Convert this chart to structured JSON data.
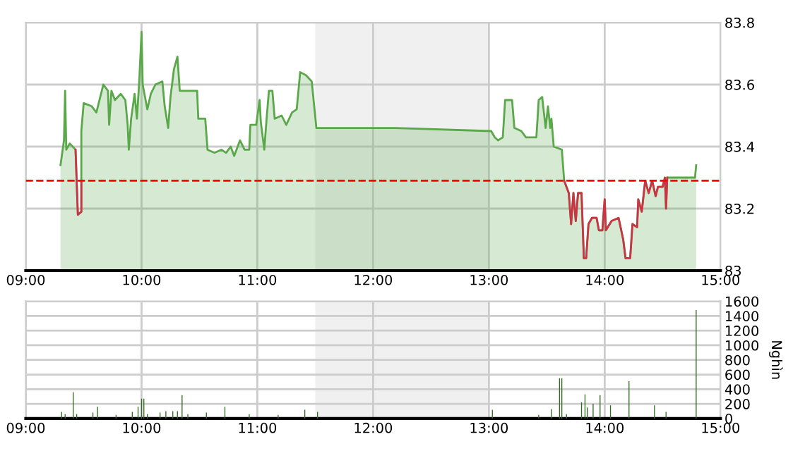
{
  "chart_data": [
    {
      "type": "area",
      "xlim": [
        9,
        15
      ],
      "xticks": [
        {
          "value": 9,
          "label": "09:00"
        },
        {
          "value": 10,
          "label": "10:00"
        },
        {
          "value": 11,
          "label": "11:00"
        },
        {
          "value": 12,
          "label": "12:00"
        },
        {
          "value": 13,
          "label": "13:00"
        },
        {
          "value": 14,
          "label": "14:00"
        },
        {
          "value": 15,
          "label": "15:00"
        }
      ],
      "ylim": [
        83,
        83.8
      ],
      "yticks": [
        83,
        83.2,
        83.4,
        83.6,
        83.8
      ],
      "grid": true,
      "ref_lines": [
        {
          "axis": "y",
          "value": 83.29,
          "color": "#ff0000",
          "line_style": "dashed"
        }
      ],
      "bands": [
        {
          "axis": "x",
          "from": 11.5,
          "to": 13,
          "color": "#f0f0f0"
        }
      ],
      "series": [
        {
          "type": "area",
          "color": "#5aa84a",
          "x": [
            9.3,
            9.33,
            9.34,
            9.35,
            9.38,
            9.43,
            9.45,
            9.48,
            9.48,
            9.5,
            9.57,
            9.61,
            9.63,
            9.67,
            9.71,
            9.72,
            9.74,
            9.77,
            9.82,
            9.86,
            9.88,
            9.89,
            9.91,
            9.94,
            9.96,
            9.98,
            10.0,
            10.01,
            10.05,
            10.08,
            10.12,
            10.18,
            10.2,
            10.23,
            10.25,
            10.28,
            10.31,
            10.33,
            10.38,
            10.42,
            10.48,
            10.49,
            10.55,
            10.57,
            10.63,
            10.69,
            10.73,
            10.77,
            10.8,
            10.85,
            10.89,
            10.93,
            10.94,
            10.99,
            11.02,
            11.03,
            11.06,
            11.08,
            11.1,
            11.13,
            11.15,
            11.21,
            11.25,
            11.3,
            11.34,
            11.37,
            11.42,
            11.47,
            11.51,
            12.19,
            13.02,
            13.05,
            13.08,
            13.12,
            13.14,
            13.2,
            13.22,
            13.28,
            13.32,
            13.41,
            13.43,
            13.46,
            13.49,
            13.51,
            13.53,
            13.54,
            13.56,
            13.63,
            13.65,
            13.69,
            13.71,
            13.73,
            13.75,
            13.77,
            13.8,
            13.82,
            13.84,
            13.86,
            13.89,
            13.93,
            13.95,
            13.98,
            14.0,
            14.01,
            14.06,
            14.12,
            14.16,
            14.18,
            14.22,
            14.24,
            14.28,
            14.29,
            14.32,
            14.35,
            14.38,
            14.41,
            14.44,
            14.46,
            14.5,
            14.52,
            14.53,
            14.54,
            14.78,
            14.79
          ],
          "values": [
            83.34,
            83.42,
            83.58,
            83.39,
            83.41,
            83.39,
            83.18,
            83.19,
            83.45,
            83.54,
            83.53,
            83.51,
            83.54,
            83.6,
            83.58,
            83.47,
            83.58,
            83.55,
            83.57,
            83.55,
            83.47,
            83.39,
            83.49,
            83.57,
            83.49,
            83.61,
            83.77,
            83.6,
            83.52,
            83.57,
            83.6,
            83.61,
            83.53,
            83.46,
            83.56,
            83.65,
            83.69,
            83.58,
            83.58,
            83.58,
            83.58,
            83.49,
            83.49,
            83.39,
            83.38,
            83.39,
            83.38,
            83.4,
            83.37,
            83.42,
            83.39,
            83.39,
            83.47,
            83.47,
            83.55,
            83.48,
            83.39,
            83.49,
            83.58,
            83.58,
            83.49,
            83.5,
            83.47,
            83.51,
            83.52,
            83.64,
            83.63,
            83.61,
            83.46,
            83.46,
            83.45,
            83.43,
            83.42,
            83.43,
            83.55,
            83.55,
            83.46,
            83.45,
            83.43,
            83.43,
            83.55,
            83.56,
            83.46,
            83.53,
            83.46,
            83.49,
            83.4,
            83.39,
            83.29,
            83.25,
            83.15,
            83.25,
            83.16,
            83.25,
            83.25,
            83.04,
            83.04,
            83.15,
            83.17,
            83.17,
            83.13,
            83.13,
            83.23,
            83.13,
            83.16,
            83.17,
            83.1,
            83.04,
            83.04,
            83.15,
            83.14,
            83.23,
            83.19,
            83.29,
            83.25,
            83.29,
            83.24,
            83.27,
            83.27,
            83.3,
            83.2,
            83.3,
            83.3,
            83.34
          ]
        },
        {
          "type": "line",
          "color": "#cc3344",
          "x": [
            9.43,
            9.45,
            9.48,
            9.48,
            13.64,
            13.65,
            13.69,
            13.71,
            13.73,
            13.75,
            13.77,
            13.8,
            13.82,
            13.84,
            13.86,
            13.89,
            13.93,
            13.95,
            13.98,
            14.0,
            14.01,
            14.06,
            14.12,
            14.16,
            14.18,
            14.22,
            14.24,
            14.28,
            14.29,
            14.32,
            14.35,
            14.38,
            14.41,
            14.44,
            14.46,
            14.5,
            14.52,
            14.53,
            14.54
          ],
          "values": [
            83.39,
            83.18,
            83.19,
            83.29,
            null,
            83.29,
            83.25,
            83.15,
            83.25,
            83.16,
            83.25,
            83.25,
            83.04,
            83.04,
            83.15,
            83.17,
            83.17,
            83.13,
            83.13,
            83.23,
            83.13,
            83.16,
            83.17,
            83.1,
            83.04,
            83.04,
            83.15,
            83.14,
            83.23,
            83.19,
            83.29,
            83.25,
            83.29,
            83.24,
            83.27,
            83.27,
            83.3,
            83.2,
            83.3
          ]
        }
      ]
    },
    {
      "type": "bar",
      "xlim": [
        9,
        15
      ],
      "xticks": [
        {
          "value": 9,
          "label": "09:00"
        },
        {
          "value": 10,
          "label": "10:00"
        },
        {
          "value": 11,
          "label": "11:00"
        },
        {
          "value": 12,
          "label": "12:00"
        },
        {
          "value": 13,
          "label": "13:00"
        },
        {
          "value": 14,
          "label": "14:00"
        },
        {
          "value": 15,
          "label": "15:00"
        }
      ],
      "ylim": [
        0,
        1600
      ],
      "yticks": [
        0,
        200,
        400,
        600,
        800,
        1000,
        1200,
        1400,
        1600
      ],
      "ylabel": "Nghìn",
      "grid": true,
      "bands": [
        {
          "axis": "x",
          "from": 11.5,
          "to": 13,
          "color": "#f0f0f0"
        }
      ],
      "series": [
        {
          "color": "#2e6b1e",
          "x": [
            9.31,
            9.34,
            9.41,
            9.44,
            9.58,
            9.62,
            9.78,
            9.92,
            9.97,
            10.0,
            10.02,
            10.05,
            10.16,
            10.21,
            10.27,
            10.31,
            10.35,
            10.4,
            10.56,
            10.72,
            10.93,
            11.18,
            11.41,
            11.52,
            13.03,
            13.43,
            13.54,
            13.61,
            13.63,
            13.67,
            13.8,
            13.83,
            13.85,
            13.9,
            13.96,
            14.05,
            14.21,
            14.43,
            14.53,
            14.79
          ],
          "values": [
            90,
            60,
            360,
            60,
            80,
            160,
            50,
            90,
            160,
            270,
            270,
            60,
            80,
            100,
            100,
            100,
            320,
            60,
            80,
            160,
            60,
            50,
            120,
            90,
            120,
            50,
            130,
            550,
            550,
            60,
            220,
            330,
            150,
            200,
            320,
            180,
            510,
            180,
            90,
            1480
          ]
        }
      ]
    }
  ]
}
